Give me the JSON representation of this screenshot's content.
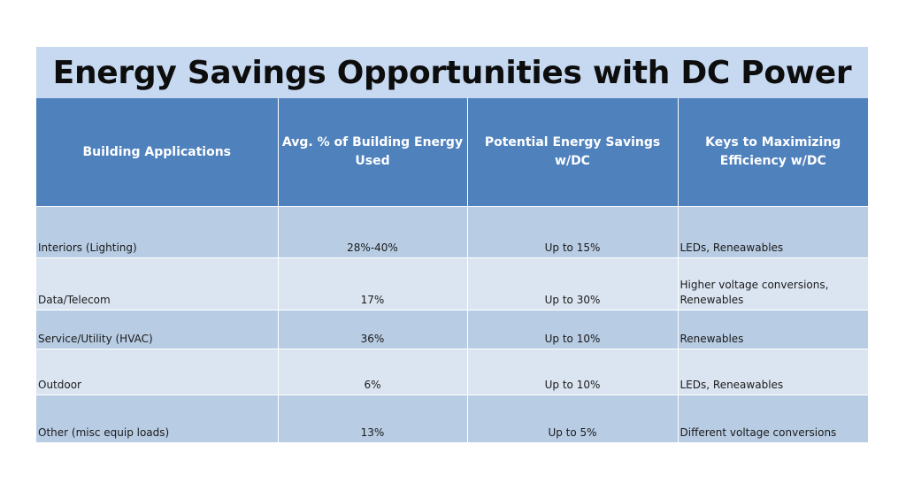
{
  "title": "Energy Savings Opportunities with DC Power",
  "colors": {
    "title_background": "#c6d9f1",
    "header_background": "#4f81bd",
    "row_dark": "#b8cce4",
    "row_light": "#dbe5f1"
  },
  "table": {
    "headers": [
      "Building Applications",
      "Avg. % of Building Energy Used",
      "Potential Energy Savings w/DC",
      "Keys to Maximizing Efficiency w/DC"
    ],
    "rows": [
      {
        "application": "Interiors (Lighting)",
        "avg_energy": "28%-40%",
        "savings": "Up to 15%",
        "keys": "LEDs, Reneawables"
      },
      {
        "application": "Data/Telecom",
        "avg_energy": "17%",
        "savings": "Up to 30%",
        "keys": "Higher voltage conversions, Renewables"
      },
      {
        "application": "Service/Utility (HVAC)",
        "avg_energy": "36%",
        "savings": "Up to 10%",
        "keys": "Renewables"
      },
      {
        "application": "Outdoor",
        "avg_energy": "6%",
        "savings": "Up to 10%",
        "keys": "LEDs, Reneawables"
      },
      {
        "application": "Other (misc equip loads)",
        "avg_energy": "13%",
        "savings": "Up to 5%",
        "keys": "Different voltage conversions"
      }
    ]
  }
}
